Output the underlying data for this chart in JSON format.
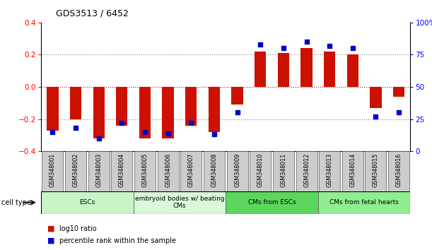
{
  "title": "GDS3513 / 6452",
  "samples": [
    "GSM348001",
    "GSM348002",
    "GSM348003",
    "GSM348004",
    "GSM348005",
    "GSM348006",
    "GSM348007",
    "GSM348008",
    "GSM348009",
    "GSM348010",
    "GSM348011",
    "GSM348012",
    "GSM348013",
    "GSM348014",
    "GSM348015",
    "GSM348016"
  ],
  "log10_ratio": [
    -0.27,
    -0.2,
    -0.32,
    -0.24,
    -0.32,
    -0.32,
    -0.24,
    -0.28,
    -0.11,
    0.22,
    0.21,
    0.24,
    0.22,
    0.2,
    -0.13,
    -0.06
  ],
  "percentile_rank": [
    15,
    18,
    10,
    22,
    15,
    14,
    22,
    13,
    30,
    83,
    80,
    85,
    82,
    80,
    27,
    30
  ],
  "cell_types": [
    {
      "label": "ESCs",
      "start": 0,
      "end": 3,
      "color": "#c8f5c8"
    },
    {
      "label": "embryoid bodies w/ beating\nCMs",
      "start": 4,
      "end": 7,
      "color": "#d8f8d8"
    },
    {
      "label": "CMs from ESCs",
      "start": 8,
      "end": 11,
      "color": "#5cd65c"
    },
    {
      "label": "CMs from fetal hearts",
      "start": 12,
      "end": 15,
      "color": "#90EE90"
    }
  ],
  "bar_color": "#cc1100",
  "dot_color": "#0000cc",
  "ylim_left": [
    -0.4,
    0.4
  ],
  "ylim_right": [
    0,
    100
  ],
  "yticks_left": [
    -0.4,
    -0.2,
    0,
    0.2,
    0.4
  ],
  "yticks_right": [
    0,
    25,
    50,
    75,
    100
  ],
  "background_color": "#ffffff",
  "legend_bar_label": "log10 ratio",
  "legend_dot_label": "percentile rank within the sample",
  "cell_type_label": "cell type"
}
